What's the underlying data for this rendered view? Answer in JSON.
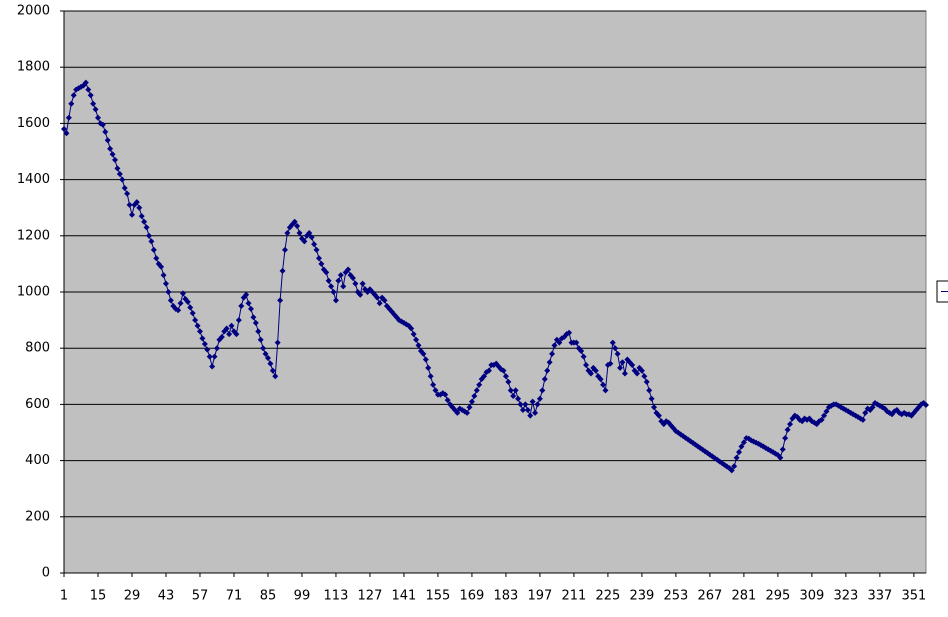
{
  "chart_data": {
    "type": "line",
    "color": "#000080",
    "grid": true,
    "ylim": [
      0,
      2000
    ],
    "yticks": [
      0,
      200,
      400,
      600,
      800,
      1000,
      1200,
      1400,
      1600,
      1800,
      2000
    ],
    "categories": [
      1,
      null,
      null,
      null,
      null,
      null,
      null,
      null,
      null,
      null,
      null,
      null,
      null,
      null,
      15,
      null,
      null,
      null,
      null,
      null,
      null,
      null,
      null,
      null,
      null,
      null,
      null,
      null,
      29,
      null,
      null,
      null,
      null,
      null,
      null,
      null,
      null,
      null,
      null,
      null,
      null,
      null,
      43,
      null,
      null,
      null,
      null,
      null,
      null,
      null,
      null,
      null,
      null,
      null,
      null,
      null,
      57,
      null,
      null,
      null,
      null,
      null,
      null,
      null,
      null,
      null,
      null,
      null,
      null,
      null,
      71,
      null,
      null,
      null,
      null,
      null,
      null,
      null,
      null,
      null,
      null,
      null,
      null,
      null,
      85,
      null,
      null,
      null,
      null,
      null,
      null,
      null,
      null,
      null,
      null,
      null,
      null,
      null,
      99,
      null,
      null,
      null,
      null,
      null,
      null,
      null,
      null,
      null,
      null,
      null,
      null,
      null,
      113,
      null,
      null,
      null,
      null,
      null,
      null,
      null,
      null,
      null,
      null,
      null,
      null,
      null,
      127,
      null,
      null,
      null,
      null,
      null,
      null,
      null,
      null,
      null,
      null,
      null,
      null,
      null,
      141,
      null,
      null,
      null,
      null,
      null,
      null,
      null,
      null,
      null,
      null,
      null,
      null,
      null,
      155,
      null,
      null,
      null,
      null,
      null,
      null,
      null,
      null,
      null,
      null,
      null,
      null,
      null,
      169,
      null,
      null,
      null,
      null,
      null,
      null,
      null,
      null,
      null,
      null,
      null,
      null,
      null,
      183,
      null,
      null,
      null,
      null,
      null,
      null,
      null,
      null,
      null,
      null,
      null,
      null,
      null,
      197,
      null,
      null,
      null,
      null,
      null,
      null,
      null,
      null,
      null,
      null,
      null,
      null,
      null,
      211,
      null,
      null,
      null,
      null,
      null,
      null,
      null,
      null,
      null,
      null,
      null,
      null,
      null,
      225,
      null,
      null,
      null,
      null,
      null,
      null,
      null,
      null,
      null,
      null,
      null,
      null,
      null,
      239,
      null,
      null,
      null,
      null,
      null,
      null,
      null,
      null,
      null,
      null,
      null,
      null,
      null,
      253,
      null,
      null,
      null,
      null,
      null,
      null,
      null,
      null,
      null,
      null,
      null,
      null,
      null,
      267,
      null,
      null,
      null,
      null,
      null,
      null,
      null,
      null,
      null,
      null,
      null,
      null,
      null,
      281,
      null,
      null,
      null,
      null,
      null,
      null,
      null,
      null,
      null,
      null,
      null,
      null,
      null,
      295,
      null,
      null,
      null,
      null,
      null,
      null,
      null,
      null,
      null,
      null,
      null,
      null,
      null,
      309,
      null,
      null,
      null,
      null,
      null,
      null,
      null,
      null,
      null,
      null,
      null,
      null,
      null,
      323,
      null,
      null,
      null,
      null,
      null,
      null,
      null,
      null,
      null,
      null,
      null,
      null,
      null,
      337,
      null,
      null,
      null,
      null,
      null,
      null,
      null,
      null,
      null,
      null,
      null,
      null,
      null,
      351,
      null,
      null,
      null,
      null,
      null
    ],
    "values": [
      1580,
      1565,
      1620,
      1670,
      1700,
      1720,
      1725,
      1730,
      1735,
      1745,
      1720,
      1700,
      1670,
      1650,
      1620,
      1600,
      1595,
      1570,
      1540,
      1510,
      1490,
      1470,
      1440,
      1420,
      1400,
      1370,
      1350,
      1310,
      1275,
      1310,
      1320,
      1300,
      1270,
      1250,
      1230,
      1200,
      1180,
      1150,
      1120,
      1100,
      1090,
      1060,
      1030,
      1000,
      970,
      950,
      940,
      935,
      960,
      995,
      975,
      965,
      945,
      925,
      900,
      880,
      860,
      835,
      815,
      795,
      770,
      735,
      770,
      800,
      830,
      840,
      860,
      870,
      850,
      880,
      860,
      850,
      900,
      950,
      980,
      990,
      960,
      940,
      910,
      890,
      860,
      830,
      800,
      780,
      765,
      745,
      720,
      700,
      820,
      970,
      1075,
      1150,
      1210,
      1230,
      1240,
      1250,
      1235,
      1210,
      1190,
      1180,
      1200,
      1210,
      1195,
      1170,
      1150,
      1120,
      1100,
      1080,
      1070,
      1040,
      1020,
      1000,
      970,
      1040,
      1060,
      1020,
      1070,
      1080,
      1060,
      1050,
      1030,
      1000,
      990,
      1030,
      1010,
      1000,
      1010,
      1000,
      990,
      980,
      960,
      980,
      970,
      950,
      940,
      930,
      920,
      910,
      900,
      895,
      890,
      885,
      880,
      870,
      850,
      830,
      810,
      790,
      780,
      760,
      730,
      700,
      670,
      650,
      635,
      635,
      640,
      635,
      615,
      600,
      590,
      580,
      570,
      585,
      580,
      575,
      570,
      590,
      610,
      630,
      650,
      670,
      690,
      700,
      715,
      720,
      740,
      740,
      745,
      735,
      725,
      720,
      700,
      680,
      650,
      630,
      650,
      620,
      600,
      580,
      600,
      580,
      560,
      610,
      570,
      600,
      620,
      650,
      690,
      720,
      750,
      780,
      810,
      830,
      820,
      835,
      840,
      850,
      855,
      820,
      820,
      820,
      800,
      790,
      770,
      740,
      720,
      710,
      730,
      720,
      700,
      690,
      670,
      650,
      740,
      745,
      820,
      800,
      780,
      730,
      750,
      710,
      760,
      750,
      740,
      720,
      710,
      730,
      720,
      700,
      680,
      650,
      620,
      590,
      570,
      560,
      540,
      530,
      540,
      535,
      525,
      515,
      505,
      499,
      493,
      487,
      481,
      475,
      469,
      463,
      457,
      451,
      445,
      439,
      433,
      427,
      421,
      415,
      409,
      403,
      397,
      391,
      385,
      379,
      373,
      365,
      380,
      410,
      430,
      450,
      465,
      480,
      478,
      472,
      468,
      464,
      460,
      455,
      450,
      445,
      440,
      435,
      430,
      425,
      420,
      410,
      440,
      480,
      510,
      530,
      550,
      560,
      555,
      545,
      540,
      550,
      545,
      550,
      540,
      535,
      530,
      540,
      545,
      560,
      575,
      590,
      595,
      600,
      600,
      595,
      590,
      585,
      580,
      575,
      570,
      565,
      560,
      555,
      550,
      545,
      570,
      585,
      580,
      590,
      605,
      600,
      595,
      590,
      585,
      575,
      570,
      565,
      575,
      580,
      570,
      565,
      570,
      565,
      565,
      560,
      570,
      580,
      590,
      600,
      605,
      598
    ]
  }
}
